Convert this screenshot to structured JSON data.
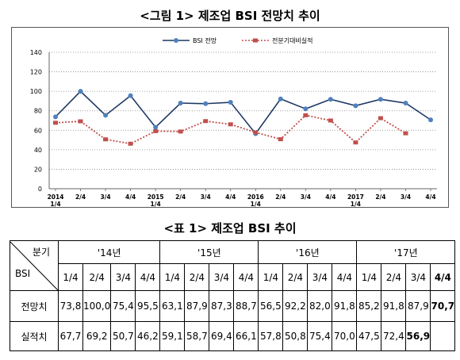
{
  "figure_title": "<그림 1> 제조업 BSI 전망치 추이",
  "table_title": "<표 1> 제조업 BSI 추이",
  "chart_data": {
    "type": "line",
    "title": "<그림 1> 제조업 BSI 전망치 추이",
    "xlabel": "",
    "ylabel": "",
    "ylim": [
      0,
      140
    ],
    "yticks": [
      0,
      20,
      40,
      60,
      80,
      100,
      120,
      140
    ],
    "grid": "dotted horizontal",
    "legend_position": "top",
    "categories": [
      "2014 1/4",
      "2/4",
      "3/4",
      "4/4",
      "2015 1/4",
      "2/4",
      "3/4",
      "4/4",
      "2016 1/4",
      "2/4",
      "3/4",
      "4/4",
      "2017 1/4",
      "2/4",
      "3/4",
      "4/4"
    ],
    "series": [
      {
        "name": "BSI 전망",
        "color": "#1f3864",
        "marker_color": "#4f81bd",
        "style": "solid",
        "values": [
          73.8,
          100.0,
          75.4,
          95.5,
          63.1,
          87.9,
          87.3,
          88.7,
          56.5,
          92.2,
          82.0,
          91.8,
          85.2,
          91.8,
          87.9,
          70.7
        ]
      },
      {
        "name": "전분기대비실적",
        "color": "#c0504d",
        "marker_color": "#c0504d",
        "style": "dotted",
        "values": [
          67.7,
          69.2,
          50.7,
          46.2,
          59.1,
          58.7,
          69.4,
          66.1,
          57.8,
          50.8,
          75.4,
          70.0,
          47.5,
          72.4,
          56.9,
          null
        ]
      }
    ]
  },
  "table": {
    "header_top": "분기",
    "header_bottom": "BSI",
    "years": [
      "'14년",
      "'15년",
      "'16년",
      "'17년"
    ],
    "quarters": [
      "1/4",
      "2/4",
      "3/4",
      "4/4",
      "1/4",
      "2/4",
      "3/4",
      "4/4",
      "1/4",
      "2/4",
      "3/4",
      "4/4",
      "1/4",
      "2/4",
      "3/4",
      "4/4"
    ],
    "rows": [
      {
        "label": "전망치",
        "values": [
          "73,8",
          "100,0",
          "75,4",
          "95,5",
          "63,1",
          "87,9",
          "87,3",
          "88,7",
          "56,5",
          "92,2",
          "82,0",
          "91,8",
          "85,2",
          "91,8",
          "87,9",
          "70,7"
        ]
      },
      {
        "label": "실적치",
        "values": [
          "67,7",
          "69,2",
          "50,7",
          "46,2",
          "59,1",
          "58,7",
          "69,4",
          "66,1",
          "57,8",
          "50,8",
          "75,4",
          "70,0",
          "47,5",
          "72,4",
          "56,9",
          ""
        ]
      }
    ]
  }
}
